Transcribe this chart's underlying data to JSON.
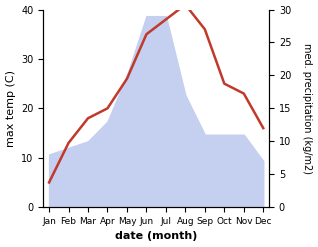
{
  "months": [
    "Jan",
    "Feb",
    "Mar",
    "Apr",
    "May",
    "Jun",
    "Jul",
    "Aug",
    "Sep",
    "Oct",
    "Nov",
    "Dec"
  ],
  "temperature": [
    5,
    13,
    18,
    20,
    26,
    35,
    38,
    41,
    36,
    25,
    23,
    16
  ],
  "precipitation": [
    8,
    9,
    10,
    13,
    20,
    29,
    29,
    17,
    11,
    11,
    11,
    7
  ],
  "temp_color": "#c0392b",
  "precip_fill_color": "#c5cff0",
  "left_ylim": [
    0,
    40
  ],
  "right_ylim": [
    0,
    30
  ],
  "left_yticks": [
    0,
    10,
    20,
    30,
    40
  ],
  "right_yticks": [
    0,
    5,
    10,
    15,
    20,
    25,
    30
  ],
  "xlabel": "date (month)",
  "ylabel_left": "max temp (C)",
  "ylabel_right": "med. precipitation (kg/m2)",
  "figsize": [
    3.18,
    2.47
  ],
  "dpi": 100
}
